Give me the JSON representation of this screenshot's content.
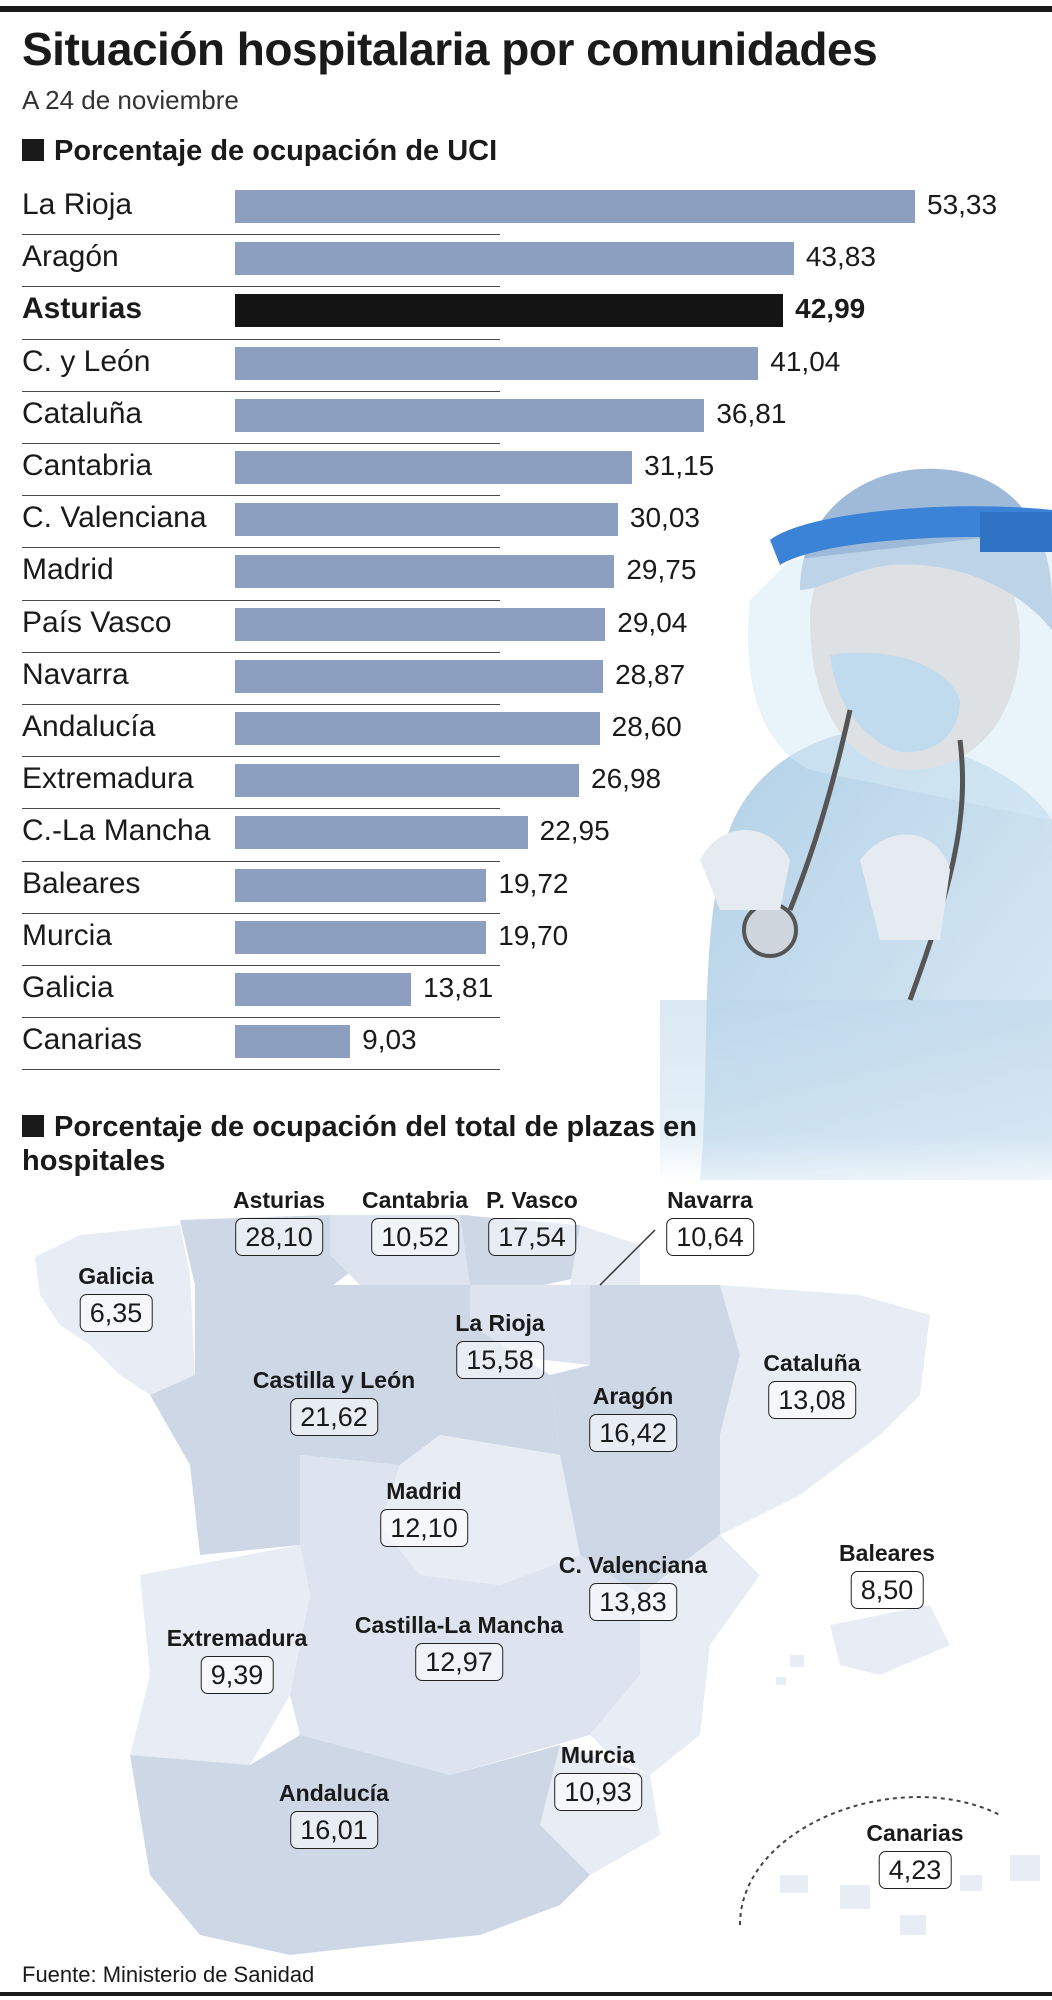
{
  "header": {
    "title": "Situación hospitalaria por comunidades",
    "subtitle": "A 24 de noviembre"
  },
  "colors": {
    "bar": "#8d9fc0",
    "highlight_bar": "#141414",
    "map_light": "#e8edf5",
    "map_mid": "#dde4ef",
    "map_dark": "#cdd7e6"
  },
  "chart_data": [
    {
      "type": "bar",
      "orientation": "horizontal",
      "title": "Porcentaje de ocupación de UCI",
      "categories": [
        "La Rioja",
        "Aragón",
        "Asturias",
        "C. y León",
        "Cataluña",
        "Cantabria",
        "C. Valenciana",
        "Madrid",
        "País Vasco",
        "Navarra",
        "Andalucía",
        "Extremadura",
        "C.-La Mancha",
        "Baleares",
        "Murcia",
        "Galicia",
        "Canarias"
      ],
      "values": [
        53.33,
        43.83,
        42.99,
        41.04,
        36.81,
        31.15,
        30.03,
        29.75,
        29.04,
        28.87,
        28.6,
        26.98,
        22.95,
        19.72,
        19.7,
        13.81,
        9.03
      ],
      "value_labels": [
        "53,33",
        "43,83",
        "42,99",
        "41,04",
        "36,81",
        "31,15",
        "30,03",
        "29,75",
        "29,04",
        "28,87",
        "28,60",
        "26,98",
        "22,95",
        "19,72",
        "19,70",
        "13,81",
        "9,03"
      ],
      "highlight": "Asturias",
      "xlim": [
        0,
        53.33
      ],
      "grid": false
    },
    {
      "type": "choropleth-map",
      "title": "Porcentaje de ocupación del total de plazas en hospitales",
      "regions": [
        {
          "name": "Asturias",
          "value": 28.1,
          "label": "28,10"
        },
        {
          "name": "Cantabria",
          "value": 10.52,
          "label": "10,52"
        },
        {
          "name": "P. Vasco",
          "value": 17.54,
          "label": "17,54"
        },
        {
          "name": "Navarra",
          "value": 10.64,
          "label": "10,64"
        },
        {
          "name": "Galicia",
          "value": 6.35,
          "label": "6,35"
        },
        {
          "name": "La Rioja",
          "value": 15.58,
          "label": "15,58"
        },
        {
          "name": "Castilla y León",
          "value": 21.62,
          "label": "21,62"
        },
        {
          "name": "Aragón",
          "value": 16.42,
          "label": "16,42"
        },
        {
          "name": "Cataluña",
          "value": 13.08,
          "label": "13,08"
        },
        {
          "name": "Madrid",
          "value": 12.1,
          "label": "12,10"
        },
        {
          "name": "C. Valenciana",
          "value": 13.83,
          "label": "13,83"
        },
        {
          "name": "Baleares",
          "value": 8.5,
          "label": "8,50"
        },
        {
          "name": "Extremadura",
          "value": 9.39,
          "label": "9,39"
        },
        {
          "name": "Castilla-La Mancha",
          "value": 12.97,
          "label": "12,97"
        },
        {
          "name": "Murcia",
          "value": 10.93,
          "label": "10,93"
        },
        {
          "name": "Andalucía",
          "value": 16.01,
          "label": "16,01"
        },
        {
          "name": "Canarias",
          "value": 4.23,
          "label": "4,23"
        }
      ]
    }
  ],
  "footer": {
    "source": "Fuente: Ministerio de Sanidad"
  }
}
